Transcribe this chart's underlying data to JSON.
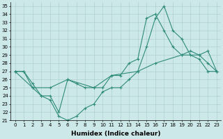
{
  "xlabel": "Humidex (Indice chaleur)",
  "xlim": [
    -0.5,
    23.5
  ],
  "ylim": [
    21,
    35.5
  ],
  "xticks": [
    0,
    1,
    2,
    3,
    4,
    5,
    6,
    7,
    8,
    9,
    10,
    11,
    12,
    13,
    14,
    15,
    16,
    17,
    18,
    19,
    20,
    21,
    22,
    23
  ],
  "yticks": [
    21,
    22,
    23,
    24,
    25,
    26,
    27,
    28,
    29,
    30,
    31,
    32,
    33,
    34,
    35
  ],
  "line_color": "#2e8b7a",
  "background_color": "#cde8e8",
  "line1_x": [
    0,
    1,
    2,
    3,
    4,
    5,
    6,
    7,
    8,
    9,
    10,
    11,
    12,
    13,
    14,
    15,
    16,
    17,
    18,
    19,
    20,
    21,
    22,
    23
  ],
  "line1_y": [
    27,
    27,
    25,
    24,
    23.5,
    21.5,
    21,
    21.5,
    22.5,
    23,
    24.5,
    25,
    25,
    26,
    27,
    30,
    33.5,
    35,
    32,
    31,
    29,
    28.5,
    27,
    27
  ],
  "line2_x": [
    0,
    1,
    2,
    3,
    4,
    5,
    6,
    7,
    8,
    9,
    10,
    11,
    12,
    13,
    14,
    15,
    16,
    17,
    18,
    19,
    20,
    21,
    22,
    23
  ],
  "line2_y": [
    27,
    27,
    25.5,
    24,
    24,
    22,
    26,
    25.5,
    25,
    25,
    25,
    26.5,
    26.5,
    28,
    28.5,
    33.5,
    34,
    32,
    30,
    29,
    29.5,
    29,
    28,
    27
  ],
  "line3_x": [
    0,
    2,
    4,
    6,
    9,
    11,
    14,
    16,
    19,
    21,
    22,
    23
  ],
  "line3_y": [
    27,
    25,
    25,
    26,
    25,
    26.5,
    27,
    28,
    29,
    29,
    29.5,
    27
  ],
  "figsize": [
    3.2,
    2.0
  ],
  "dpi": 100,
  "tick_fontsize": 5,
  "xlabel_fontsize": 6.5,
  "marker_size": 2,
  "linewidth": 0.8
}
